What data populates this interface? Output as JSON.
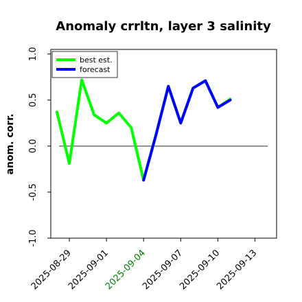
{
  "chart_data": {
    "type": "line",
    "title": "Anomaly crrltn, layer 3 salinity",
    "xlabel": "",
    "ylabel": "anom. corr.",
    "ylim": [
      -1.0,
      1.05
    ],
    "yticks": [
      "-1.0",
      "-0.5",
      "0.0",
      "0.5",
      "1.0"
    ],
    "ytick_values": [
      -1.0,
      -0.5,
      0.0,
      0.5,
      1.0
    ],
    "xlim": [
      "2025-08-27T12:00",
      "2025-09-14T18:00"
    ],
    "xticks": [
      "2025-08-29",
      "2025-09-01",
      "2025-09-04",
      "2025-09-07",
      "2025-09-10",
      "2025-09-13"
    ],
    "xtick_colors": [
      "#000000",
      "#000000",
      "#008000",
      "#000000",
      "#000000",
      "#000000"
    ],
    "reference_line_y": 0.0,
    "legend_position": "top-left",
    "grid": false,
    "series": [
      {
        "name": "best est.",
        "color": "#00ff00",
        "x": [
          "2025-08-28",
          "2025-08-29",
          "2025-08-30",
          "2025-08-31",
          "2025-09-01",
          "2025-09-02",
          "2025-09-03",
          "2025-09-04",
          "2025-09-05",
          "2025-09-06",
          "2025-09-07",
          "2025-09-08",
          "2025-09-09",
          "2025-09-10",
          "2025-09-11"
        ],
        "values": [
          0.37,
          -0.19,
          0.72,
          0.34,
          0.25,
          0.36,
          0.2,
          -0.37,
          0.12,
          0.65,
          0.25,
          0.63,
          0.71,
          0.42,
          0.51
        ]
      },
      {
        "name": "forecast",
        "color": "#0000ff",
        "x": [
          "2025-09-04",
          "2025-09-05",
          "2025-09-06",
          "2025-09-07",
          "2025-09-08",
          "2025-09-09",
          "2025-09-10",
          "2025-09-11"
        ],
        "values": [
          -0.37,
          0.12,
          0.65,
          0.25,
          0.63,
          0.71,
          0.42,
          0.5
        ]
      }
    ]
  }
}
